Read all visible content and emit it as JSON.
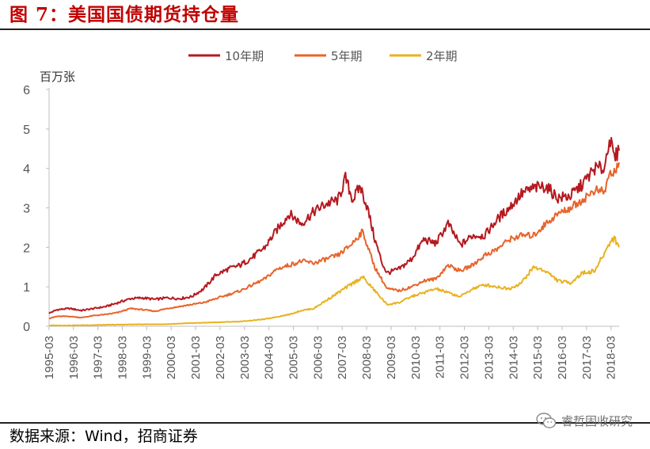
{
  "figure": {
    "title": "图 7：美国国债期货持仓量",
    "source": "数据来源：Wind，招商证券",
    "watermark": "睿哲固收研究"
  },
  "chart_data": {
    "type": "line",
    "unit_label": "百万张",
    "ylim": [
      0,
      6
    ],
    "y_ticks": [
      "0",
      "1",
      "2",
      "3",
      "4",
      "5",
      "6"
    ],
    "x_categories": [
      "1995-03",
      "1996-03",
      "1997-03",
      "1998-03",
      "1999-03",
      "2000-03",
      "2001-03",
      "2002-03",
      "2003-03",
      "2004-03",
      "2005-03",
      "2006-03",
      "2007-03",
      "2008-03",
      "2009-03",
      "2010-03",
      "2011-03",
      "2012-03",
      "2013-03",
      "2014-03",
      "2015-03",
      "2016-03",
      "2017-03",
      "2018-03"
    ],
    "x_range": [
      1995.17,
      2018.5
    ],
    "grid": false,
    "legend_position": "top-center",
    "series": [
      {
        "name": "10年期",
        "color": "#b5191f",
        "points": [
          [
            1995.17,
            0.33
          ],
          [
            1995.5,
            0.42
          ],
          [
            1996.0,
            0.45
          ],
          [
            1996.5,
            0.4
          ],
          [
            1997.0,
            0.45
          ],
          [
            1997.5,
            0.5
          ],
          [
            1998.0,
            0.6
          ],
          [
            1998.5,
            0.7
          ],
          [
            1999.0,
            0.72
          ],
          [
            1999.5,
            0.68
          ],
          [
            2000.0,
            0.72
          ],
          [
            2000.5,
            0.7
          ],
          [
            2001.0,
            0.75
          ],
          [
            2001.5,
            0.95
          ],
          [
            2002.0,
            1.3
          ],
          [
            2002.5,
            1.45
          ],
          [
            2003.0,
            1.55
          ],
          [
            2003.5,
            1.75
          ],
          [
            2004.0,
            2.0
          ],
          [
            2004.5,
            2.45
          ],
          [
            2005.0,
            2.85
          ],
          [
            2005.5,
            2.6
          ],
          [
            2006.0,
            2.9
          ],
          [
            2006.5,
            3.1
          ],
          [
            2007.0,
            3.2
          ],
          [
            2007.3,
            3.75
          ],
          [
            2007.6,
            3.2
          ],
          [
            2007.9,
            3.55
          ],
          [
            2008.2,
            3.0
          ],
          [
            2008.5,
            2.2
          ],
          [
            2008.8,
            1.6
          ],
          [
            2009.0,
            1.35
          ],
          [
            2009.5,
            1.45
          ],
          [
            2010.0,
            1.7
          ],
          [
            2010.5,
            2.2
          ],
          [
            2011.0,
            2.1
          ],
          [
            2011.5,
            2.6
          ],
          [
            2012.0,
            2.05
          ],
          [
            2012.5,
            2.3
          ],
          [
            2013.0,
            2.3
          ],
          [
            2013.5,
            2.7
          ],
          [
            2014.0,
            3.0
          ],
          [
            2014.5,
            3.35
          ],
          [
            2015.0,
            3.5
          ],
          [
            2015.5,
            3.55
          ],
          [
            2016.0,
            3.25
          ],
          [
            2016.5,
            3.3
          ],
          [
            2017.0,
            3.6
          ],
          [
            2017.5,
            4.0
          ],
          [
            2017.9,
            4.0
          ],
          [
            2018.1,
            4.8
          ],
          [
            2018.3,
            4.25
          ],
          [
            2018.5,
            4.45
          ]
        ]
      },
      {
        "name": "5年期",
        "color": "#e8642a",
        "points": [
          [
            1995.17,
            0.2
          ],
          [
            1995.5,
            0.25
          ],
          [
            1996.0,
            0.25
          ],
          [
            1996.5,
            0.22
          ],
          [
            1997.0,
            0.27
          ],
          [
            1997.5,
            0.3
          ],
          [
            1998.0,
            0.35
          ],
          [
            1998.5,
            0.45
          ],
          [
            1999.0,
            0.42
          ],
          [
            1999.5,
            0.38
          ],
          [
            2000.0,
            0.45
          ],
          [
            2000.5,
            0.5
          ],
          [
            2001.0,
            0.55
          ],
          [
            2001.5,
            0.6
          ],
          [
            2002.0,
            0.7
          ],
          [
            2002.5,
            0.8
          ],
          [
            2003.0,
            0.9
          ],
          [
            2003.5,
            1.05
          ],
          [
            2004.0,
            1.2
          ],
          [
            2004.5,
            1.45
          ],
          [
            2005.0,
            1.55
          ],
          [
            2005.5,
            1.65
          ],
          [
            2006.0,
            1.6
          ],
          [
            2006.5,
            1.7
          ],
          [
            2007.0,
            1.8
          ],
          [
            2007.5,
            2.05
          ],
          [
            2008.0,
            2.4
          ],
          [
            2008.5,
            1.5
          ],
          [
            2009.0,
            0.95
          ],
          [
            2009.5,
            0.9
          ],
          [
            2010.0,
            1.0
          ],
          [
            2010.5,
            1.15
          ],
          [
            2011.0,
            1.2
          ],
          [
            2011.5,
            1.55
          ],
          [
            2012.0,
            1.4
          ],
          [
            2012.5,
            1.55
          ],
          [
            2013.0,
            1.8
          ],
          [
            2013.5,
            1.95
          ],
          [
            2014.0,
            2.2
          ],
          [
            2014.5,
            2.3
          ],
          [
            2015.0,
            2.3
          ],
          [
            2015.5,
            2.6
          ],
          [
            2016.0,
            2.85
          ],
          [
            2016.5,
            3.0
          ],
          [
            2017.0,
            3.2
          ],
          [
            2017.5,
            3.45
          ],
          [
            2017.9,
            3.4
          ],
          [
            2018.1,
            3.85
          ],
          [
            2018.3,
            3.9
          ],
          [
            2018.5,
            4.15
          ]
        ]
      },
      {
        "name": "2年期",
        "color": "#e8b221",
        "points": [
          [
            1995.17,
            0.02
          ],
          [
            1996.0,
            0.02
          ],
          [
            1997.0,
            0.03
          ],
          [
            1998.0,
            0.04
          ],
          [
            1999.0,
            0.05
          ],
          [
            2000.0,
            0.05
          ],
          [
            2001.0,
            0.08
          ],
          [
            2002.0,
            0.1
          ],
          [
            2003.0,
            0.12
          ],
          [
            2004.0,
            0.18
          ],
          [
            2005.0,
            0.3
          ],
          [
            2005.5,
            0.4
          ],
          [
            2006.0,
            0.45
          ],
          [
            2006.5,
            0.65
          ],
          [
            2007.0,
            0.85
          ],
          [
            2007.5,
            1.05
          ],
          [
            2008.0,
            1.25
          ],
          [
            2008.5,
            0.9
          ],
          [
            2009.0,
            0.55
          ],
          [
            2009.5,
            0.6
          ],
          [
            2010.0,
            0.75
          ],
          [
            2010.5,
            0.85
          ],
          [
            2011.0,
            0.95
          ],
          [
            2011.5,
            0.85
          ],
          [
            2012.0,
            0.75
          ],
          [
            2012.5,
            0.95
          ],
          [
            2013.0,
            1.05
          ],
          [
            2013.5,
            1.0
          ],
          [
            2014.0,
            0.95
          ],
          [
            2014.5,
            1.1
          ],
          [
            2015.0,
            1.5
          ],
          [
            2015.5,
            1.4
          ],
          [
            2016.0,
            1.15
          ],
          [
            2016.5,
            1.1
          ],
          [
            2017.0,
            1.35
          ],
          [
            2017.5,
            1.4
          ],
          [
            2017.9,
            1.85
          ],
          [
            2018.1,
            2.1
          ],
          [
            2018.3,
            2.25
          ],
          [
            2018.5,
            2.0
          ]
        ]
      }
    ]
  }
}
